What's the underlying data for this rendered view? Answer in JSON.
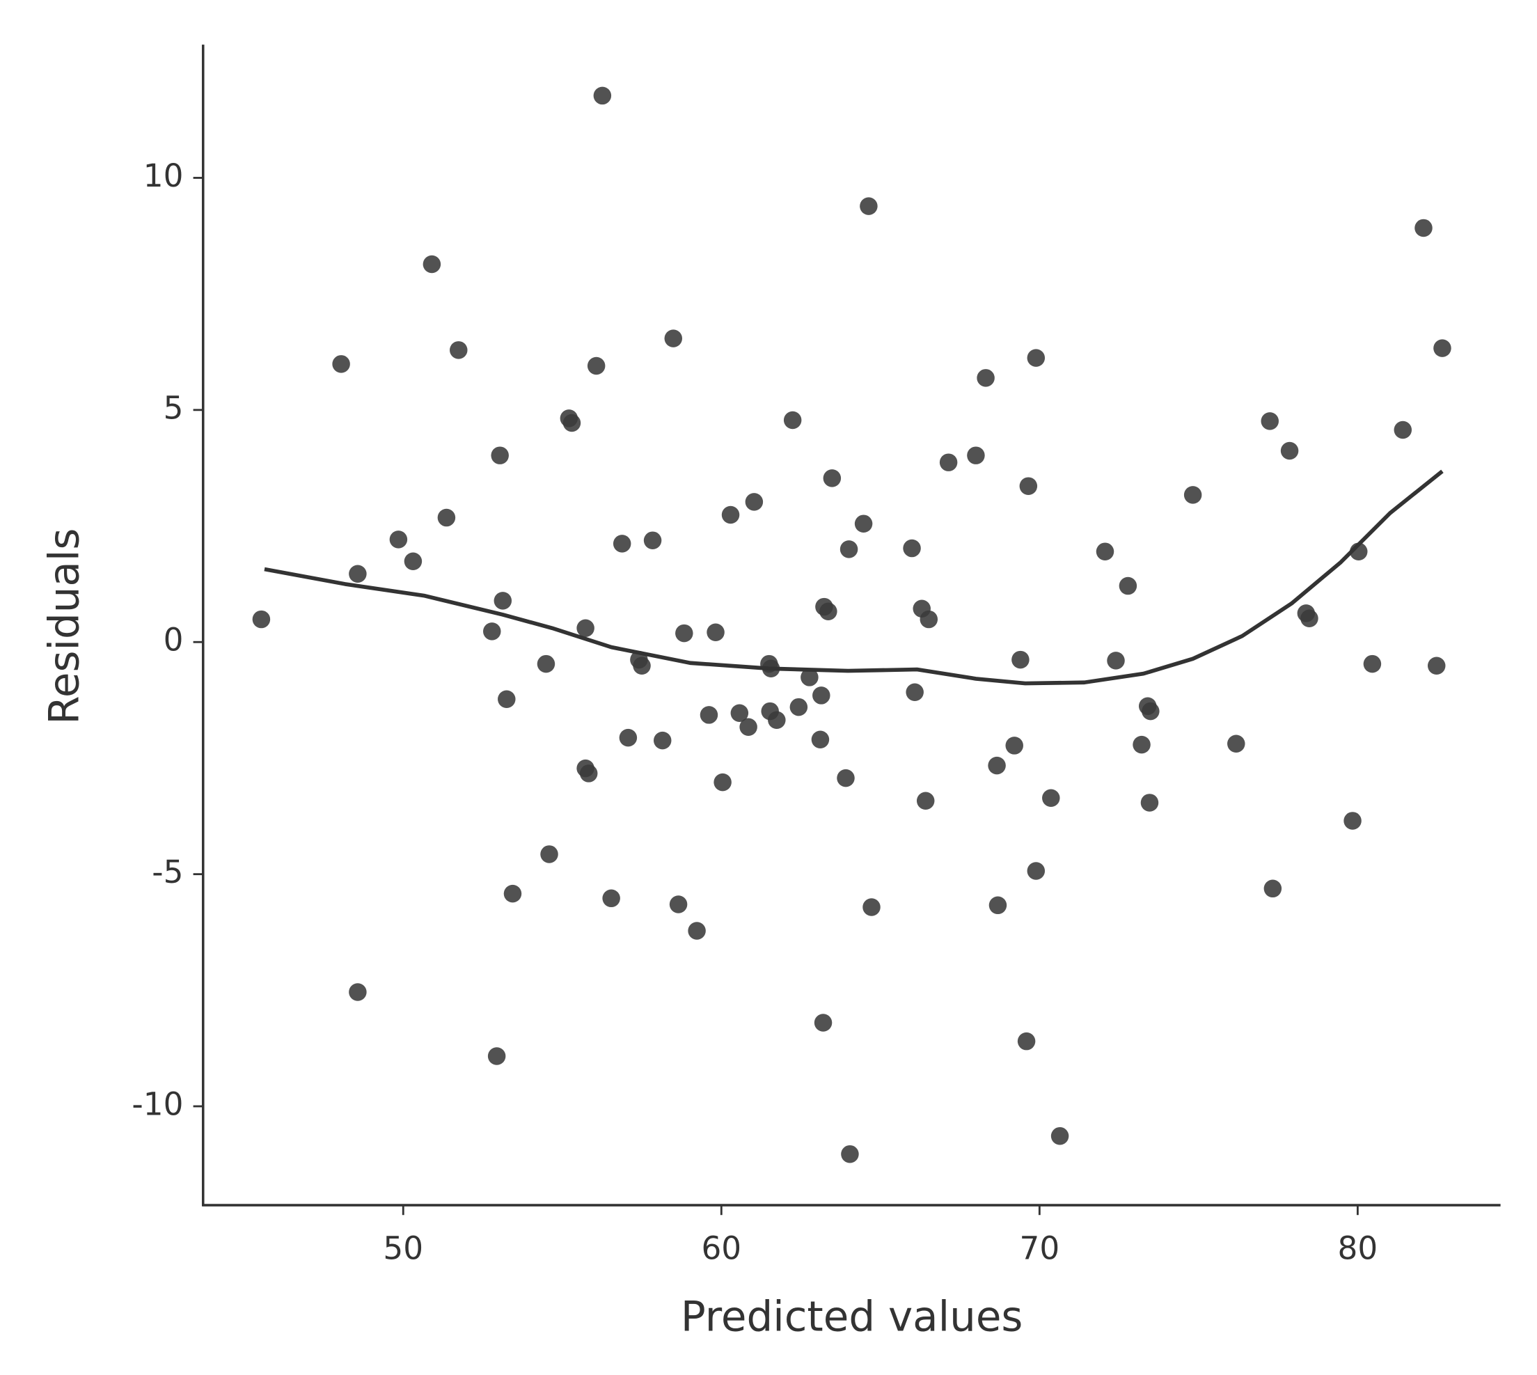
{
  "chart_data": {
    "type": "scatter",
    "x_label": "Predicted values",
    "y_label": "Residuals",
    "xlim": [
      43.71,
      84.49
    ],
    "ylim": [
      -12.13,
      12.87
    ],
    "xticks": [
      50,
      60,
      70,
      80
    ],
    "yticks": [
      -10,
      -5,
      0,
      5,
      10
    ],
    "series": [
      {
        "type": "scatter",
        "color": "#3a3a3a",
        "x": [
          45.54,
          48.05,
          48.57,
          48.57,
          49.85,
          50.31,
          50.9,
          51.36,
          51.74,
          52.79,
          52.94,
          53.04,
          53.13,
          53.25,
          53.44,
          54.49,
          54.59,
          55.21,
          55.3,
          55.73,
          55.73,
          55.83,
          56.07,
          56.26,
          56.54,
          56.88,
          57.07,
          57.41,
          57.5,
          57.84,
          58.15,
          58.49,
          58.65,
          58.83,
          59.23,
          59.61,
          59.82,
          60.04,
          60.29,
          60.57,
          60.85,
          61.03,
          61.5,
          61.56,
          61.53,
          61.74,
          62.24,
          62.43,
          62.77,
          63.11,
          63.14,
          63.2,
          63.23,
          63.36,
          63.48,
          63.91,
          64.01,
          64.04,
          64.47,
          64.63,
          64.72,
          65.99,
          66.08,
          66.3,
          66.42,
          66.52,
          67.14,
          68.0,
          68.31,
          68.66,
          68.69,
          69.21,
          69.4,
          69.59,
          69.65,
          69.89,
          69.89,
          70.36,
          70.64,
          72.06,
          72.4,
          72.78,
          73.21,
          73.4,
          73.49,
          73.46,
          74.82,
          76.18,
          77.24,
          77.33,
          77.86,
          78.38,
          78.48,
          79.84,
          80.03,
          80.46,
          81.42,
          82.07,
          82.48,
          82.66
        ],
        "values": [
          0.49,
          5.99,
          1.47,
          -7.54,
          2.21,
          1.74,
          8.14,
          2.68,
          6.29,
          0.23,
          -8.92,
          4.02,
          0.89,
          -1.23,
          -5.42,
          -0.47,
          -4.57,
          4.82,
          4.72,
          0.3,
          -2.72,
          -2.83,
          5.95,
          11.77,
          -5.52,
          2.12,
          -2.06,
          -0.38,
          -0.51,
          2.19,
          -2.12,
          6.54,
          -5.65,
          0.19,
          -6.22,
          -1.57,
          0.21,
          -3.02,
          2.74,
          -1.53,
          -1.83,
          3.02,
          -0.47,
          -0.57,
          -1.49,
          -1.68,
          4.78,
          -1.4,
          -0.76,
          -2.1,
          -1.15,
          -8.2,
          0.76,
          0.66,
          3.53,
          -2.93,
          2.0,
          -11.03,
          2.55,
          9.39,
          -5.71,
          2.02,
          -1.08,
          0.72,
          -3.42,
          0.49,
          3.87,
          4.02,
          5.69,
          -2.66,
          -5.67,
          -2.23,
          -0.38,
          -8.6,
          3.36,
          -4.93,
          6.12,
          -3.36,
          -10.64,
          1.95,
          -0.4,
          1.21,
          -2.21,
          -1.38,
          -1.49,
          -3.46,
          3.17,
          -2.19,
          4.76,
          -5.31,
          4.12,
          0.62,
          0.51,
          -3.85,
          1.95,
          -0.47,
          4.57,
          8.92,
          -0.51,
          6.33
        ]
      },
      {
        "type": "line",
        "color": "#333333",
        "x": [
          45.64,
          48.17,
          50.65,
          53.13,
          54.68,
          56.54,
          59.02,
          61.5,
          63.98,
          66.15,
          68.0,
          69.55,
          71.41,
          73.27,
          74.82,
          76.37,
          77.92,
          79.47,
          81.02,
          82.66
        ],
        "values": [
          1.57,
          1.25,
          1.0,
          0.59,
          0.3,
          -0.11,
          -0.45,
          -0.57,
          -0.62,
          -0.59,
          -0.79,
          -0.89,
          -0.87,
          -0.68,
          -0.36,
          0.13,
          0.83,
          1.72,
          2.78,
          3.68
        ]
      }
    ]
  }
}
